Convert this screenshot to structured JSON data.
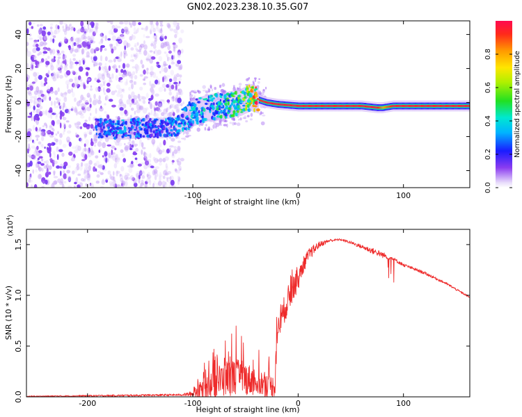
{
  "title": "GN02.2023.238.10.35.G07",
  "chart_data": [
    {
      "type": "heatmap",
      "name": "spectrogram",
      "xlabel": "Height of straight line (km)",
      "ylabel": "Frequency (Hz)",
      "xlim": [
        -258,
        163
      ],
      "ylim": [
        -50,
        48
      ],
      "xticks": [
        -200,
        -100,
        0,
        100
      ],
      "yticks": [
        -40,
        -20,
        0,
        20,
        40
      ],
      "colorbar": {
        "label": "Normalized spectral amplitude",
        "range": [
          0.0,
          1.0
        ],
        "ticks": [
          "0.0",
          "0.2",
          "0.4",
          "0.6",
          "0.8"
        ],
        "tick_values": [
          0.0,
          0.2,
          0.4,
          0.6,
          0.8
        ]
      },
      "ridge": {
        "x": [
          -190,
          -170,
          -150,
          -130,
          -115,
          -100,
          -85,
          -70,
          -55,
          -45,
          -40,
          -30,
          -20,
          0,
          20,
          40,
          60,
          75,
          80,
          90,
          110,
          130,
          150,
          163
        ],
        "freq": [
          -15,
          -16,
          -15,
          -15,
          -14,
          -6,
          -3,
          -2,
          0,
          3,
          2,
          0,
          -1,
          -2,
          -2,
          -2,
          -2,
          -3,
          -3,
          -2,
          -2,
          -2,
          -2,
          -2
        ],
        "amplitude": [
          0.25,
          0.35,
          0.3,
          0.3,
          0.35,
          0.4,
          0.4,
          0.45,
          0.55,
          0.7,
          0.9,
          0.95,
          0.95,
          0.95,
          0.95,
          0.95,
          0.95,
          0.95,
          0.8,
          0.95,
          0.95,
          0.95,
          0.95,
          0.95
        ]
      },
      "noise_region_x": [
        -258,
        -110
      ]
    },
    {
      "type": "line",
      "name": "snr",
      "xlabel": "Height of straight line (km)",
      "ylabel": "SNR (10 * v/v)",
      "multiplier_label": "(x10",
      "multiplier_exp": "4",
      "multiplier_close": ")",
      "xlim": [
        -258,
        163
      ],
      "ylim": [
        0,
        1.65
      ],
      "xticks": [
        -200,
        -100,
        0,
        100
      ],
      "yticks": [
        "0.0",
        "0.5",
        "1.0",
        "1.5"
      ],
      "ytick_values": [
        0.0,
        0.5,
        1.0,
        1.5
      ],
      "color": "#ee2a2a",
      "envelope": {
        "x": [
          -258,
          -200,
          -150,
          -110,
          -100,
          -90,
          -80,
          -70,
          -60,
          -50,
          -40,
          -30,
          -22,
          -20,
          -15,
          -10,
          -5,
          0,
          5,
          10,
          15,
          20,
          30,
          40,
          50,
          60,
          70,
          80,
          90,
          100,
          120,
          140,
          163
        ],
        "mean": [
          0.005,
          0.01,
          0.015,
          0.02,
          0.03,
          0.08,
          0.13,
          0.18,
          0.2,
          0.18,
          0.15,
          0.12,
          0.1,
          0.62,
          0.8,
          0.95,
          1.05,
          1.15,
          1.3,
          1.4,
          1.45,
          1.5,
          1.54,
          1.55,
          1.52,
          1.48,
          1.44,
          1.4,
          1.36,
          1.3,
          1.22,
          1.12,
          0.98
        ],
        "jitter": [
          0.005,
          0.008,
          0.01,
          0.01,
          0.03,
          0.1,
          0.15,
          0.18,
          0.18,
          0.16,
          0.14,
          0.12,
          0.1,
          0.12,
          0.14,
          0.14,
          0.12,
          0.1,
          0.08,
          0.06,
          0.05,
          0.03,
          0.015,
          0.01,
          0.015,
          0.02,
          0.03,
          0.03,
          0.02,
          0.015,
          0.015,
          0.012,
          0.01
        ]
      }
    }
  ]
}
